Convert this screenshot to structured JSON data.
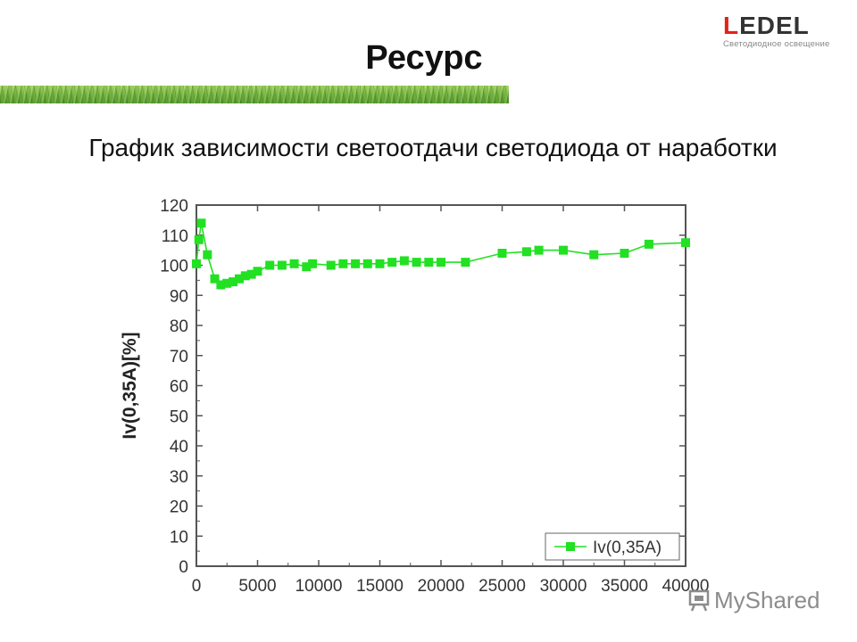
{
  "logo": {
    "letter_accent": "L",
    "letters_rest": "EDEL",
    "tagline": "Светодиодное освещение",
    "accent_color": "#e2231a"
  },
  "slide": {
    "title": "Ресурс",
    "subtitle": "График зависимости светоотдачи светодиода от наработки"
  },
  "watermark": {
    "icon": "presentation-board-icon",
    "text": "MyShared"
  },
  "chart_data": {
    "type": "line",
    "title": "",
    "xlabel": "",
    "ylabel": "Iv(0,35A)[%]",
    "xlim": [
      0,
      40000
    ],
    "ylim": [
      0,
      120
    ],
    "x_ticks": [
      "0",
      "5000",
      "10000",
      "15000",
      "20000",
      "25000",
      "30000",
      "35000",
      "40000"
    ],
    "y_ticks": [
      "0",
      "10",
      "20",
      "30",
      "40",
      "50",
      "60",
      "70",
      "80",
      "90",
      "100",
      "110",
      "120"
    ],
    "grid": false,
    "legend_position": "bottom-right",
    "series": [
      {
        "name": "Iv(0,35A)",
        "color": "#22e022",
        "marker": "square",
        "points": [
          [
            0,
            100.5
          ],
          [
            200,
            108.5
          ],
          [
            400,
            114
          ],
          [
            900,
            103.5
          ],
          [
            1500,
            95.5
          ],
          [
            2000,
            93.5
          ],
          [
            2500,
            94
          ],
          [
            3000,
            94.5
          ],
          [
            3500,
            95.5
          ],
          [
            4000,
            96.5
          ],
          [
            4500,
            97
          ],
          [
            5000,
            98
          ],
          [
            6000,
            100
          ],
          [
            7000,
            100
          ],
          [
            8000,
            100.5
          ],
          [
            9000,
            99.5
          ],
          [
            9500,
            100.5
          ],
          [
            11000,
            100
          ],
          [
            12000,
            100.5
          ],
          [
            13000,
            100.5
          ],
          [
            14000,
            100.5
          ],
          [
            15000,
            100.5
          ],
          [
            16000,
            101
          ],
          [
            17000,
            101.5
          ],
          [
            18000,
            101
          ],
          [
            19000,
            101
          ],
          [
            20000,
            101
          ],
          [
            22000,
            101
          ],
          [
            25000,
            104
          ],
          [
            27000,
            104.5
          ],
          [
            28000,
            105
          ],
          [
            30000,
            105
          ],
          [
            32500,
            103.5
          ],
          [
            35000,
            104
          ],
          [
            37000,
            107
          ],
          [
            40000,
            107.5
          ]
        ]
      }
    ]
  }
}
